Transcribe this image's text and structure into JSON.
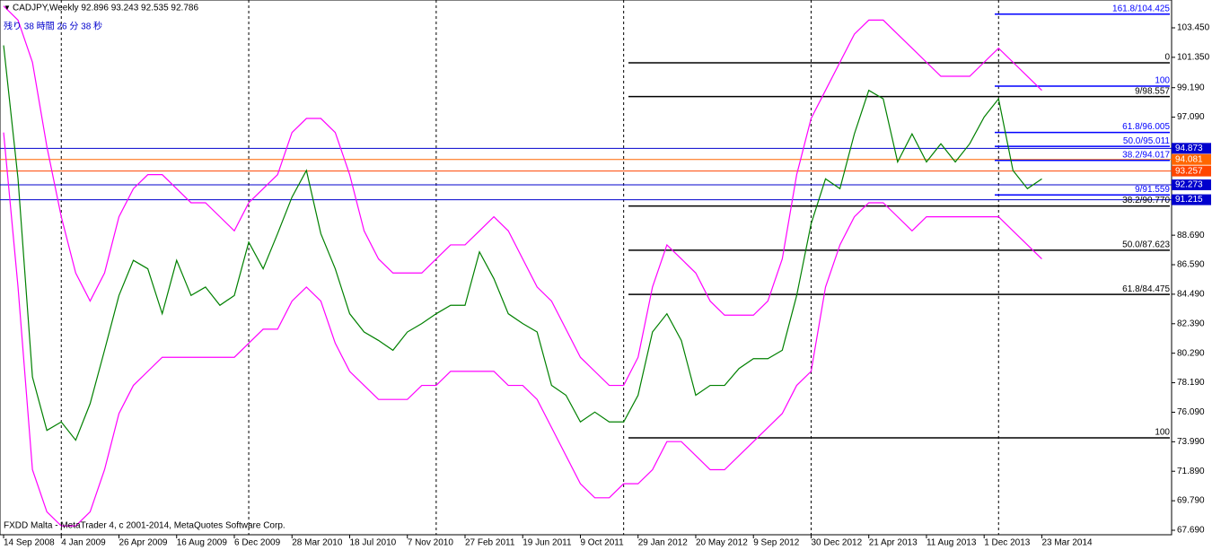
{
  "chart_data": {
    "type": "line",
    "title": "CADJPY,Weekly  92.896 93.243 92.535 92.786",
    "subtitle": "残り 38 時間 26 分 38 秒",
    "footer": "FXDD Malta - MetaTrader 4, c 2001-2014, MetaQuotes Software Corp.",
    "xlim": [
      -1,
      324
    ],
    "ylim": [
      67.37,
      105.43
    ],
    "xticks": [
      {
        "value": 0,
        "label": "14 Sep 2008"
      },
      {
        "value": 16,
        "label": "4 Jan 2009"
      },
      {
        "value": 32,
        "label": "26 Apr 2009"
      },
      {
        "value": 48,
        "label": "16 Aug 2009"
      },
      {
        "value": 64,
        "label": "6 Dec 2009"
      },
      {
        "value": 80,
        "label": "28 Mar 2010"
      },
      {
        "value": 96,
        "label": "18 Jul 2010"
      },
      {
        "value": 112,
        "label": "7 Nov 2010"
      },
      {
        "value": 128,
        "label": "27 Feb 2011"
      },
      {
        "value": 144,
        "label": "19 Jun 2011"
      },
      {
        "value": 160,
        "label": "9 Oct 2011"
      },
      {
        "value": 176,
        "label": "29 Jan 2012"
      },
      {
        "value": 192,
        "label": "20 May 2012"
      },
      {
        "value": 208,
        "label": "9 Sep 2012"
      },
      {
        "value": 224,
        "label": "30 Dec 2012"
      },
      {
        "value": 240,
        "label": "21 Apr 2013"
      },
      {
        "value": 256,
        "label": "11 Aug 2013"
      },
      {
        "value": 272,
        "label": "1 Dec 2013"
      },
      {
        "value": 288,
        "label": "23 Mar 2014"
      }
    ],
    "separators": [
      16,
      68,
      120,
      172,
      224,
      276
    ],
    "yticks": [
      {
        "value": 67.69,
        "label": "67.690"
      },
      {
        "value": 69.79,
        "label": "69.790"
      },
      {
        "value": 71.89,
        "label": "71.890"
      },
      {
        "value": 73.99,
        "label": "73.990"
      },
      {
        "value": 76.09,
        "label": "76.090"
      },
      {
        "value": 78.19,
        "label": "78.190"
      },
      {
        "value": 80.29,
        "label": "80.290"
      },
      {
        "value": 82.39,
        "label": "82.390"
      },
      {
        "value": 84.49,
        "label": "84.490"
      },
      {
        "value": 86.59,
        "label": "86.590"
      },
      {
        "value": 88.69,
        "label": "88.690"
      },
      {
        "value": 97.09,
        "label": "97.090"
      },
      {
        "value": 99.19,
        "label": "99.190"
      },
      {
        "value": 101.35,
        "label": "101.350"
      },
      {
        "value": 103.45,
        "label": "103.450"
      }
    ],
    "x": [
      0,
      4,
      8,
      12,
      16,
      20,
      24,
      28,
      32,
      36,
      40,
      44,
      48,
      52,
      56,
      60,
      64,
      68,
      72,
      76,
      80,
      84,
      88,
      92,
      96,
      100,
      104,
      108,
      112,
      116,
      120,
      124,
      128,
      132,
      136,
      140,
      144,
      148,
      152,
      156,
      160,
      164,
      168,
      172,
      176,
      180,
      184,
      188,
      192,
      196,
      200,
      204,
      208,
      212,
      216,
      220,
      224,
      228,
      232,
      236,
      240,
      244,
      248,
      252,
      256,
      260,
      264,
      268,
      272,
      276,
      280,
      284,
      288
    ],
    "series": [
      {
        "color": "#ff00ff",
        "values": [
          105,
          104,
          101,
          95,
          90,
          86,
          84,
          86,
          90,
          92,
          93,
          93,
          92,
          91,
          91,
          90,
          89,
          91,
          92,
          93,
          96,
          97,
          97,
          96,
          93,
          89,
          87,
          86,
          86,
          86,
          87,
          88,
          88,
          89,
          90,
          89,
          87,
          85,
          84,
          82,
          80,
          79,
          78,
          78,
          80,
          85,
          88,
          87,
          86,
          84,
          83,
          83,
          83,
          84,
          87,
          93,
          97,
          99,
          101,
          103,
          104,
          104,
          103,
          102,
          101,
          100,
          100,
          100,
          101,
          102,
          101,
          100,
          99
        ]
      },
      {
        "color": "#ff00ff",
        "values": [
          96,
          85,
          72,
          69,
          68,
          68,
          69,
          72,
          76,
          78,
          79,
          80,
          80,
          80,
          80,
          80,
          80,
          81,
          82,
          82,
          84,
          85,
          84,
          81,
          79,
          78,
          77,
          77,
          77,
          78,
          78,
          79,
          79,
          79,
          79,
          78,
          78,
          77,
          75,
          73,
          71,
          70,
          70,
          71,
          71,
          72,
          74,
          74,
          73,
          72,
          72,
          73,
          74,
          75,
          76,
          78,
          79,
          85,
          88,
          90,
          91,
          91,
          90,
          89,
          90,
          90,
          90,
          90,
          90,
          90,
          89,
          88,
          87
        ]
      },
      {
        "color": "#008000",
        "values": [
          102.2,
          92.7,
          78.6,
          74.8,
          75.4,
          74.1,
          76.7,
          80.5,
          84.4,
          86.9,
          86.3,
          83.1,
          86.9,
          84.4,
          85.0,
          83.7,
          84.4,
          88.2,
          86.3,
          88.8,
          91.4,
          93.3,
          88.8,
          86.3,
          83.1,
          81.8,
          81.2,
          80.5,
          81.8,
          82.4,
          83.1,
          83.7,
          83.7,
          87.5,
          85.6,
          83.1,
          82.4,
          81.8,
          78.0,
          77.3,
          75.4,
          76.1,
          75.4,
          75.4,
          77.3,
          81.8,
          83.1,
          81.2,
          77.3,
          78.0,
          78.0,
          79.2,
          79.9,
          79.9,
          80.5,
          84.4,
          89.5,
          92.7,
          92.0,
          95.9,
          99.0,
          98.4,
          93.9,
          95.9,
          93.9,
          95.2,
          93.9,
          95.2,
          97.1,
          98.4,
          93.3,
          92.0,
          92.7
        ]
      }
    ],
    "levels": [
      {
        "label": "161.8/104.425",
        "value": 104.425,
        "color": "#0000ff"
      },
      {
        "label": "0",
        "value": 100.96,
        "color": "#000000"
      },
      {
        "label": "100",
        "value": 99.3,
        "color": "#0000ff"
      },
      {
        "label": "9/98.557",
        "value": 98.557,
        "color": "#000000"
      },
      {
        "label": "61.8/96.005",
        "value": 96.005,
        "color": "#0000ff"
      },
      {
        "label": "50.0/95.011",
        "value": 95.011,
        "color": "#0000ff"
      },
      {
        "label": "38.2/94.017",
        "value": 94.017,
        "color": "#0000ff"
      },
      {
        "label": "9/91.559",
        "value": 91.559,
        "color": "#0000ff"
      },
      {
        "label": "38.2/90.770",
        "value": 90.77,
        "color": "#000000"
      },
      {
        "label": "50.0/87.623",
        "value": 87.623,
        "color": "#000000"
      },
      {
        "label": "61.8/84.475",
        "value": 84.475,
        "color": "#000000"
      },
      {
        "label": "100",
        "value": 74.27,
        "color": "#000000"
      }
    ],
    "price_lines": [
      {
        "value": 94.873,
        "label": "94.873",
        "color": "#0000cd"
      },
      {
        "value": 94.081,
        "label": "94.081",
        "color": "#ff6600"
      },
      {
        "value": 93.257,
        "label": "93.257",
        "color": "#ff4500"
      },
      {
        "value": 92.273,
        "label": "92.273",
        "color": "#0000cd"
      },
      {
        "value": 91.215,
        "label": "91.215",
        "color": "#0000cd"
      }
    ]
  }
}
